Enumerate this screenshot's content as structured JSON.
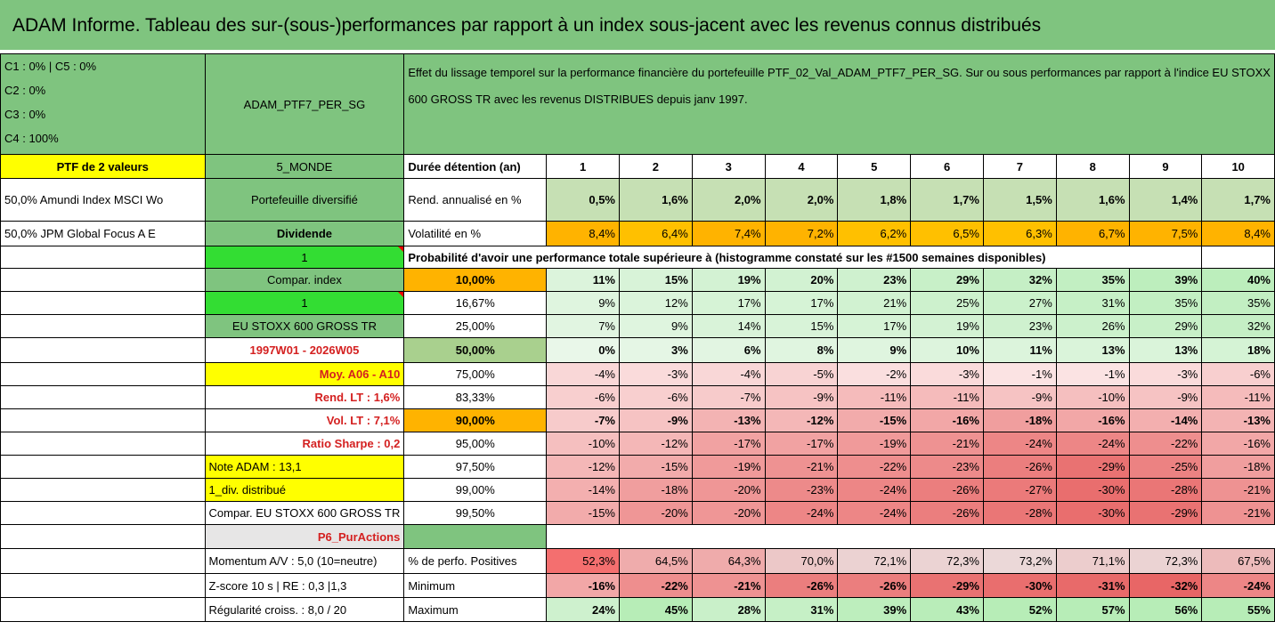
{
  "title": "ADAM Informe. Tableau des sur-(sous-)performances par rapport à un index sous-jacent avec les revenus connus distribués",
  "pie_legend": [
    "C1 : 0% | C5 : 0%",
    "C2 : 0%",
    "C3 : 0%",
    "C4 : 100%"
  ],
  "pie_colors": {
    "fill": "#ff0000",
    "stroke": "#7f7f7f"
  },
  "portfolio_name": "ADAM_PTF7_PER_SG",
  "description": "Effet du lissage temporel sur la performance financière du portefeuille PTF_02_Val_ADAM_PTF7_PER_SG. Sur ou sous performances par rapport à l'indice EU STOXX 600 GROSS TR avec les revenus DISTRIBUES depuis janv 1997.",
  "left": {
    "ptf_label": "PTF de 2 valeurs",
    "holding1": "50,0% Amundi Index MSCI Wo",
    "holding2": "50,0% JPM Global Focus A E"
  },
  "mid": {
    "region": "5_MONDE",
    "diversified": "Portefeuille diversifié",
    "dividend": "Dividende",
    "one_a": "1",
    "compar_index": "Compar. index",
    "one_b": "1",
    "index_name": "EU STOXX 600 GROSS TR",
    "period": "1997W01 - 2026W05",
    "moy": "Moy. A06 - A10",
    "rend_lt": "Rend. LT : 1,6%",
    "vol_lt": "Vol. LT : 7,1%",
    "sharpe": "Ratio Sharpe : 0,2",
    "note": "Note ADAM : 13,1",
    "div": "1_div. distribué",
    "compar_long": "Compar. EU STOXX 600 GROSS TR",
    "p6": "P6_PurActions",
    "momentum": "Momentum A/V : 5,0 (10=neutre)",
    "zscore": "Z-score 10 s | RE : 0,3 |1,3",
    "regul": "Régularité croiss. : 8,0 / 20"
  },
  "labels": {
    "duree": "Durée détention (an)",
    "rend": "Rend. annualisé en %",
    "vol": "Volatilité en %",
    "proba": "Probabilité d'avoir une performance totale supérieure à (histogramme constaté sur les #1500 semaines disponibles)",
    "positives": "% de perfo. Positives",
    "minimum": "Minimum",
    "maximum": "Maximum"
  },
  "years": [
    "1",
    "2",
    "3",
    "4",
    "5",
    "6",
    "7",
    "8",
    "9",
    "10"
  ],
  "rend": [
    "0,5%",
    "1,6%",
    "2,0%",
    "2,0%",
    "1,8%",
    "1,7%",
    "1,5%",
    "1,6%",
    "1,4%",
    "1,7%"
  ],
  "vol": [
    "8,4%",
    "6,4%",
    "7,4%",
    "7,2%",
    "6,2%",
    "6,5%",
    "6,3%",
    "6,7%",
    "7,5%",
    "8,4%"
  ],
  "proba_rows": [
    {
      "pct": "10,00%",
      "vals": [
        "11%",
        "15%",
        "19%",
        "20%",
        "23%",
        "29%",
        "32%",
        "35%",
        "39%",
        "40%"
      ]
    },
    {
      "pct": "16,67%",
      "vals": [
        "9%",
        "12%",
        "17%",
        "17%",
        "21%",
        "25%",
        "27%",
        "31%",
        "35%",
        "35%"
      ]
    },
    {
      "pct": "25,00%",
      "vals": [
        "7%",
        "9%",
        "14%",
        "15%",
        "17%",
        "19%",
        "23%",
        "26%",
        "29%",
        "32%"
      ]
    },
    {
      "pct": "50,00%",
      "vals": [
        "0%",
        "3%",
        "6%",
        "8%",
        "9%",
        "10%",
        "11%",
        "13%",
        "13%",
        "18%"
      ]
    },
    {
      "pct": "75,00%",
      "vals": [
        "-4%",
        "-3%",
        "-4%",
        "-5%",
        "-2%",
        "-3%",
        "-1%",
        "-1%",
        "-3%",
        "-6%"
      ]
    },
    {
      "pct": "83,33%",
      "vals": [
        "-6%",
        "-6%",
        "-7%",
        "-9%",
        "-11%",
        "-11%",
        "-9%",
        "-10%",
        "-9%",
        "-11%"
      ]
    },
    {
      "pct": "90,00%",
      "vals": [
        "-7%",
        "-9%",
        "-13%",
        "-12%",
        "-15%",
        "-16%",
        "-18%",
        "-16%",
        "-14%",
        "-13%"
      ]
    },
    {
      "pct": "95,00%",
      "vals": [
        "-10%",
        "-12%",
        "-17%",
        "-17%",
        "-19%",
        "-21%",
        "-24%",
        "-24%",
        "-22%",
        "-16%"
      ]
    },
    {
      "pct": "97,50%",
      "vals": [
        "-12%",
        "-15%",
        "-19%",
        "-21%",
        "-22%",
        "-23%",
        "-26%",
        "-29%",
        "-25%",
        "-18%"
      ]
    },
    {
      "pct": "99,00%",
      "vals": [
        "-14%",
        "-18%",
        "-20%",
        "-23%",
        "-24%",
        "-26%",
        "-27%",
        "-30%",
        "-28%",
        "-21%"
      ]
    },
    {
      "pct": "99,50%",
      "vals": [
        "-15%",
        "-20%",
        "-20%",
        "-24%",
        "-24%",
        "-26%",
        "-28%",
        "-30%",
        "-29%",
        "-21%"
      ]
    }
  ],
  "positives": [
    "52,3%",
    "64,5%",
    "64,3%",
    "70,0%",
    "72,1%",
    "72,3%",
    "73,2%",
    "71,1%",
    "72,3%",
    "67,5%"
  ],
  "minimum": [
    "-16%",
    "-22%",
    "-21%",
    "-26%",
    "-26%",
    "-29%",
    "-30%",
    "-31%",
    "-32%",
    "-24%"
  ],
  "maximum": [
    "24%",
    "45%",
    "28%",
    "31%",
    "39%",
    "43%",
    "52%",
    "57%",
    "56%",
    "55%"
  ]
}
